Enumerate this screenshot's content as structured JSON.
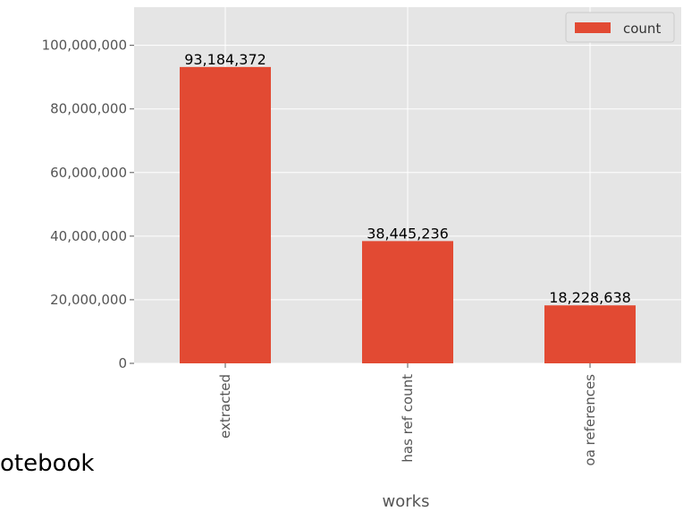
{
  "chart_data": {
    "type": "bar",
    "categories": [
      "extracted",
      "has ref count",
      "oa references"
    ],
    "series": [
      {
        "name": "count",
        "values": [
          93184372,
          38445236,
          18228638
        ],
        "color": "#E24A33"
      }
    ],
    "data_labels": [
      "93,184,372",
      "38,445,236",
      "18,228,638"
    ],
    "xlabel": "works",
    "ylabel": "",
    "ylim": [
      0,
      112000000
    ],
    "yticks": [
      0,
      20000000,
      40000000,
      60000000,
      80000000,
      100000000
    ],
    "ytick_labels": [
      "0",
      "20,000,000",
      "40,000,000",
      "60,000,000",
      "80,000,000",
      "100,000,000"
    ],
    "grid": true,
    "legend_position": "top-right",
    "background_color": "#E5E5E5",
    "grid_color": "#FFFFFF",
    "tick_label_color": "#555555"
  },
  "page": {
    "fragment_text": "otebook"
  }
}
